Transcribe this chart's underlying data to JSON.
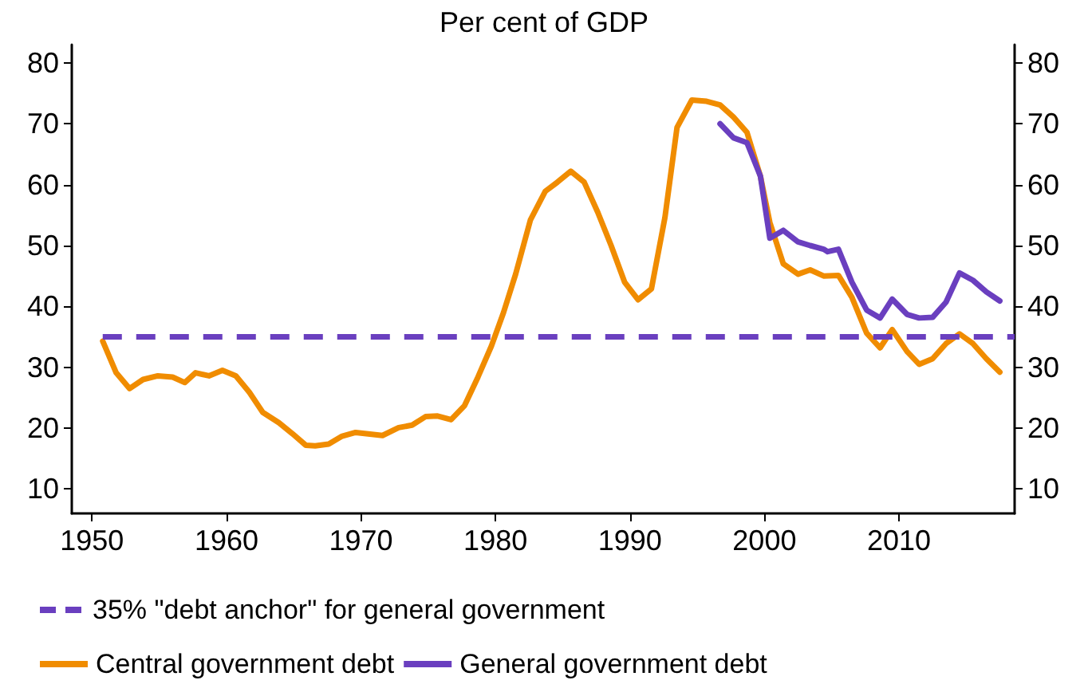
{
  "chart_data": {
    "type": "line",
    "title": "Per cent of GDP",
    "series": [
      {
        "name": "Central government debt",
        "color": "#f08c00",
        "x": [
          1950.8,
          1951.8,
          1952.8,
          1953.8,
          1954.9,
          1956.0,
          1956.9,
          1957.7,
          1958.7,
          1959.7,
          1960.7,
          1961.7,
          1962.7,
          1963.9,
          1964.9,
          1965.9,
          1966.6,
          1967.6,
          1968.6,
          1969.6,
          1971.6,
          1972.8,
          1973.8,
          1974.8,
          1975.7,
          1976.7,
          1977.7,
          1978.7,
          1979.7,
          1980.6,
          1981.5,
          1982.6,
          1983.7,
          1984.6,
          1985.6,
          1986.6,
          1987.6,
          1988.6,
          1989.6,
          1990.6,
          1991.6,
          1992.6,
          1993.5,
          1994.6,
          1995.7,
          1996.7,
          1997.7,
          1998.7,
          1999.7,
          2000.4,
          2001.4,
          2002.5,
          2003.4,
          2004.4,
          2005.5,
          2006.5,
          2007.6,
          2008.6,
          2009.5,
          2010.6,
          2011.5,
          2012.5,
          2013.5,
          2014.5,
          2015.5,
          2016.5,
          2017.5
        ],
        "values": [
          34.3,
          29.1,
          26.5,
          28,
          28.6,
          28.4,
          27.5,
          29.1,
          28.6,
          29.5,
          28.6,
          25.9,
          22.6,
          20.9,
          19.1,
          17.2,
          17.1,
          17.4,
          18.7,
          19.3,
          18.8,
          20.1,
          20.5,
          21.9,
          22,
          21.4,
          23.7,
          28.4,
          33.5,
          39,
          45.3,
          54.2,
          58.9,
          60.4,
          62.2,
          60.4,
          55.5,
          50,
          44,
          41.1,
          42.9,
          54.6,
          69.4,
          73.9,
          73.7,
          73.1,
          71.1,
          68.6,
          61.4,
          53.8,
          47,
          45.3,
          46,
          45,
          45.1,
          41.5,
          35.6,
          33.2,
          36.2,
          32.6,
          30.5,
          31.4,
          33.9,
          35.5,
          33.9,
          31.4,
          29.2
        ]
      },
      {
        "name": "General government debt",
        "color": "#6a3fbf",
        "x": [
          1996.7,
          1997.7,
          1998.7,
          1999.7,
          2000.4,
          2001.4,
          2002.5,
          2003.4,
          2004.4,
          2004.7,
          2005.5,
          2006.5,
          2007.6,
          2008.6,
          2009.5,
          2010.6,
          2011.5,
          2012.5,
          2013.5,
          2014.5,
          2015.5,
          2016.5,
          2017.5
        ],
        "values": [
          70,
          67.7,
          66.9,
          61.4,
          51.2,
          52.5,
          50.6,
          50,
          49.4,
          49,
          49.4,
          44,
          39.4,
          38.1,
          41.2,
          38.7,
          38.1,
          38.2,
          40.7,
          45.5,
          44.3,
          42.4,
          40.9
        ]
      }
    ],
    "ref_lines": [
      {
        "axis": "y",
        "value": 35,
        "label": "35% \"debt anchor\" for general government",
        "color": "#6a3fbf",
        "line_style": "dashed"
      }
    ],
    "xlim": [
      1948.5,
      2018.6
    ],
    "xticks": [
      1950,
      1960,
      1970,
      1980,
      1990,
      2000,
      2010
    ],
    "ylim": [
      6,
      83
    ],
    "yticks": [
      10,
      20,
      30,
      40,
      50,
      60,
      70,
      80
    ],
    "y2lim": [
      6,
      83
    ],
    "y2ticks": [
      10,
      20,
      30,
      40,
      50,
      60,
      70,
      80
    ],
    "grid": false,
    "legend": "bottom",
    "marker": "none",
    "line_style": "solid"
  }
}
